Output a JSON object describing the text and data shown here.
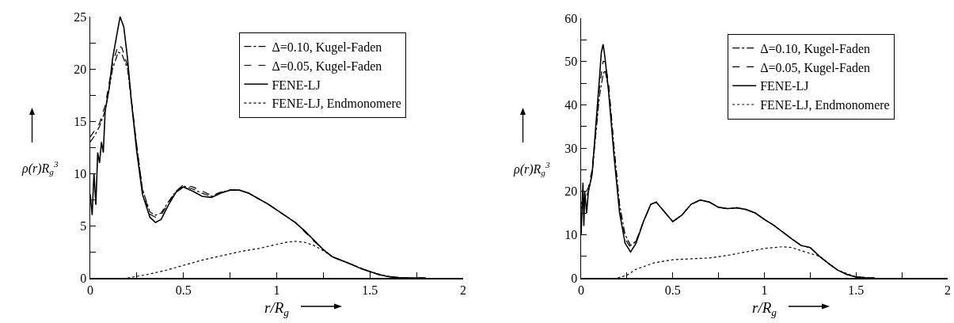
{
  "chart_data": [
    {
      "type": "line",
      "xlabel": "r/R$_{g}$",
      "ylabel": "ρ(r)R$_{g}$$^{3}$",
      "xlim": [
        0,
        2
      ],
      "ylim": [
        0,
        25
      ],
      "xticks": [
        0,
        {
          "value": 0.25,
          "label": null
        },
        0.5,
        {
          "value": 0.75,
          "label": null
        },
        1,
        {
          "value": 1.25,
          "label": null
        },
        1.5,
        {
          "value": 1.75,
          "label": null
        },
        2
      ],
      "yticks": [
        0,
        {
          "value": 2.5,
          "label": null
        },
        5,
        {
          "value": 7.5,
          "label": null
        },
        10,
        {
          "value": 12.5,
          "label": null
        },
        15,
        {
          "value": 17.5,
          "label": null
        },
        20,
        {
          "value": 22.5,
          "label": null
        },
        25
      ],
      "legend": "top right",
      "grid": false,
      "series": [
        {
          "name": "Δ=0.10, Kugel-Faden",
          "color": "#000000",
          "line_style": "dashdot",
          "x": [
            0,
            0.02,
            0.05,
            0.08,
            0.1,
            0.12,
            0.15,
            0.17,
            0.2,
            0.22,
            0.25,
            0.28,
            0.32,
            0.35,
            0.38,
            0.42,
            0.46,
            0.5,
            0.55,
            0.6,
            0.65,
            0.7,
            0.75,
            0.8,
            0.85,
            0.9,
            0.95,
            1.0,
            1.05,
            1.1,
            1.15,
            1.2,
            1.25,
            1.3,
            1.4,
            1.45,
            1.5,
            1.55,
            1.6,
            1.65,
            1.7,
            1.8
          ],
          "values": [
            13,
            13.5,
            14.5,
            16,
            18,
            20,
            21.6,
            21.4,
            20,
            17,
            12.5,
            8.5,
            6.3,
            6,
            6.2,
            7.3,
            8.3,
            8.8,
            8.5,
            8.1,
            7.8,
            8.2,
            8.4,
            8.4,
            8.1,
            7.6,
            7.1,
            6.5,
            5.9,
            5.3,
            4.5,
            3.6,
            2.7,
            2,
            1.3,
            0.9,
            0.6,
            0.3,
            0.12,
            0.03,
            0,
            0
          ]
        },
        {
          "name": "Δ=0.05, Kugel-Faden",
          "color": "#000000",
          "line_style": "dashed",
          "x": [
            0,
            0.02,
            0.05,
            0.08,
            0.1,
            0.12,
            0.15,
            0.17,
            0.2,
            0.22,
            0.25,
            0.28,
            0.32,
            0.35,
            0.38,
            0.42,
            0.46,
            0.5,
            0.55,
            0.6,
            0.65,
            0.7,
            0.75,
            0.8,
            0.85,
            0.9,
            0.95,
            1.0,
            1.05,
            1.1,
            1.15,
            1.2,
            1.25,
            1.3,
            1.4,
            1.45,
            1.5,
            1.55,
            1.6,
            1.65,
            1.7,
            1.8
          ],
          "values": [
            13.5,
            14,
            14.8,
            16.5,
            18.5,
            20.5,
            22.3,
            22,
            20.3,
            17.2,
            12.6,
            8.4,
            6.1,
            5.8,
            6,
            7.2,
            8.3,
            8.9,
            8.7,
            8.3,
            7.9,
            8.2,
            8.4,
            8.4,
            8.1,
            7.6,
            7.1,
            6.5,
            5.9,
            5.3,
            4.4,
            3.5,
            2.7,
            2,
            1.3,
            0.9,
            0.6,
            0.3,
            0.12,
            0.03,
            0,
            0
          ]
        },
        {
          "name": "FENE-LJ",
          "color": "#000000",
          "line_style": "solid",
          "x": [
            0,
            0.01,
            0.02,
            0.03,
            0.04,
            0.05,
            0.06,
            0.07,
            0.08,
            0.1,
            0.12,
            0.14,
            0.16,
            0.18,
            0.2,
            0.22,
            0.25,
            0.28,
            0.32,
            0.35,
            0.38,
            0.42,
            0.46,
            0.5,
            0.55,
            0.6,
            0.65,
            0.7,
            0.75,
            0.8,
            0.85,
            0.9,
            0.95,
            1.0,
            1.05,
            1.1,
            1.15,
            1.2,
            1.25,
            1.3,
            1.4,
            1.45,
            1.5,
            1.55,
            1.6,
            1.65,
            1.7,
            1.8
          ],
          "values": [
            8,
            6,
            10,
            7,
            12,
            11,
            13,
            12,
            16,
            18,
            21,
            23,
            25,
            24,
            21,
            17,
            12,
            8,
            5.8,
            5.3,
            5.6,
            7,
            8.2,
            8.7,
            8.3,
            7.8,
            7.7,
            8.1,
            8.4,
            8.4,
            8.1,
            7.6,
            7.1,
            6.5,
            5.9,
            5.3,
            4.5,
            3.6,
            2.7,
            2,
            1.3,
            0.9,
            0.6,
            0.3,
            0.12,
            0.03,
            0,
            0
          ]
        },
        {
          "name": "FENE-LJ, Endmonomere",
          "color": "#000000",
          "line_style": "dotted",
          "x": [
            0.2,
            0.3,
            0.4,
            0.5,
            0.6,
            0.7,
            0.8,
            0.9,
            1.0,
            1.05,
            1.1,
            1.15,
            1.2,
            1.25,
            1.3,
            1.4,
            1.5,
            1.6,
            1.7
          ],
          "values": [
            0,
            0.3,
            0.7,
            1.2,
            1.7,
            2.1,
            2.5,
            2.8,
            3.2,
            3.4,
            3.5,
            3.4,
            3.1,
            2.6,
            2,
            1.3,
            0.6,
            0.12,
            0
          ]
        }
      ]
    },
    {
      "type": "line",
      "xlabel": "r/R$_{g}$",
      "ylabel": "ρ(r)R$_{g}$$^{3}$",
      "xlim": [
        0,
        2
      ],
      "ylim": [
        0,
        60
      ],
      "xticks": [
        0,
        {
          "value": 0.25,
          "label": null
        },
        0.5,
        {
          "value": 0.75,
          "label": null
        },
        1,
        {
          "value": 1.25,
          "label": null
        },
        1.5,
        {
          "value": 1.75,
          "label": null
        },
        2
      ],
      "yticks": [
        0,
        {
          "value": 5,
          "label": null
        },
        10,
        {
          "value": 15,
          "label": null
        },
        20,
        {
          "value": 25,
          "label": null
        },
        30,
        {
          "value": 35,
          "label": null
        },
        40,
        {
          "value": 45,
          "label": null
        },
        50,
        {
          "value": 55,
          "label": null
        },
        60
      ],
      "legend": "top right",
      "grid": false,
      "series": [
        {
          "name": "Δ=0.10, Kugel-Faden",
          "color": "#000000",
          "line_style": "dashdot",
          "x": [
            0,
            0.02,
            0.04,
            0.06,
            0.08,
            0.1,
            0.12,
            0.13,
            0.15,
            0.18,
            0.21,
            0.24,
            0.27,
            0.3,
            0.34,
            0.38,
            0.41,
            0.45,
            0.5,
            0.55,
            0.6,
            0.65,
            0.7,
            0.75,
            0.8,
            0.85,
            0.9,
            0.95,
            1.0,
            1.05,
            1.1,
            1.15,
            1.2,
            1.25,
            1.3,
            1.35,
            1.4,
            1.45,
            1.5,
            1.55,
            1.6
          ],
          "values": [
            16,
            18,
            20,
            24,
            33,
            42,
            47,
            48,
            44,
            30,
            17,
            10,
            7.5,
            8.5,
            13,
            17,
            17.5,
            15.5,
            13,
            14.5,
            17,
            18,
            17.5,
            16.3,
            16,
            16.2,
            15.8,
            15,
            13.5,
            12.2,
            10.6,
            9,
            7.5,
            7,
            5,
            3.3,
            1.8,
            0.8,
            0.2,
            0.05,
            0
          ]
        },
        {
          "name": "Δ=0.05, Kugel-Faden",
          "color": "#000000",
          "line_style": "dashed",
          "x": [
            0,
            0.02,
            0.04,
            0.06,
            0.08,
            0.1,
            0.12,
            0.13,
            0.15,
            0.18,
            0.21,
            0.24,
            0.27,
            0.3,
            0.34,
            0.38,
            0.41,
            0.45,
            0.5,
            0.55,
            0.6,
            0.65,
            0.7,
            0.75,
            0.8,
            0.85,
            0.9,
            0.95,
            1.0,
            1.05,
            1.1,
            1.15,
            1.2,
            1.25,
            1.3,
            1.35,
            1.4,
            1.45,
            1.5,
            1.55,
            1.6
          ],
          "values": [
            17,
            19,
            21,
            25,
            34,
            44,
            50,
            50,
            45,
            30,
            16,
            9,
            7,
            8.5,
            13,
            17,
            17.5,
            15.5,
            13,
            14.5,
            17,
            18,
            17.5,
            16.3,
            16,
            16.2,
            15.8,
            15,
            13.5,
            12.2,
            10.6,
            9,
            7.5,
            7,
            5,
            3.3,
            1.8,
            0.8,
            0.2,
            0.05,
            0
          ]
        },
        {
          "name": "FENE-LJ",
          "color": "#000000",
          "line_style": "solid",
          "x": [
            0,
            0.01,
            0.015,
            0.02,
            0.03,
            0.04,
            0.06,
            0.08,
            0.1,
            0.11,
            0.12,
            0.13,
            0.15,
            0.18,
            0.21,
            0.24,
            0.27,
            0.3,
            0.34,
            0.38,
            0.41,
            0.45,
            0.5,
            0.55,
            0.6,
            0.65,
            0.7,
            0.75,
            0.8,
            0.85,
            0.9,
            0.95,
            1.0,
            1.05,
            1.1,
            1.15,
            1.2,
            1.25,
            1.3,
            1.35,
            1.4,
            1.45,
            1.5,
            1.55,
            1.6
          ],
          "values": [
            10,
            22,
            12,
            20,
            15,
            20,
            24,
            35,
            46,
            52,
            54,
            51,
            43,
            28,
            15,
            8,
            6,
            8,
            13,
            17,
            17.5,
            15.5,
            13,
            14.5,
            17,
            18,
            17.5,
            16.3,
            16,
            16.2,
            15.8,
            15,
            13.5,
            12.2,
            10.6,
            9,
            7.5,
            7,
            5,
            3.3,
            1.8,
            0.8,
            0.2,
            0.05,
            0
          ]
        },
        {
          "name": "FENE-LJ, Endmonomere",
          "color": "#000000",
          "line_style": "dotted",
          "x": [
            0.2,
            0.25,
            0.3,
            0.4,
            0.5,
            0.6,
            0.7,
            0.8,
            0.9,
            1.0,
            1.1,
            1.15,
            1.2,
            1.3,
            1.4,
            1.5,
            1.6
          ],
          "values": [
            0,
            0.6,
            2,
            3.5,
            4.2,
            4.4,
            4.6,
            5.2,
            6,
            6.8,
            7.2,
            7,
            6.3,
            5,
            1.8,
            0.2,
            0
          ]
        }
      ]
    }
  ]
}
